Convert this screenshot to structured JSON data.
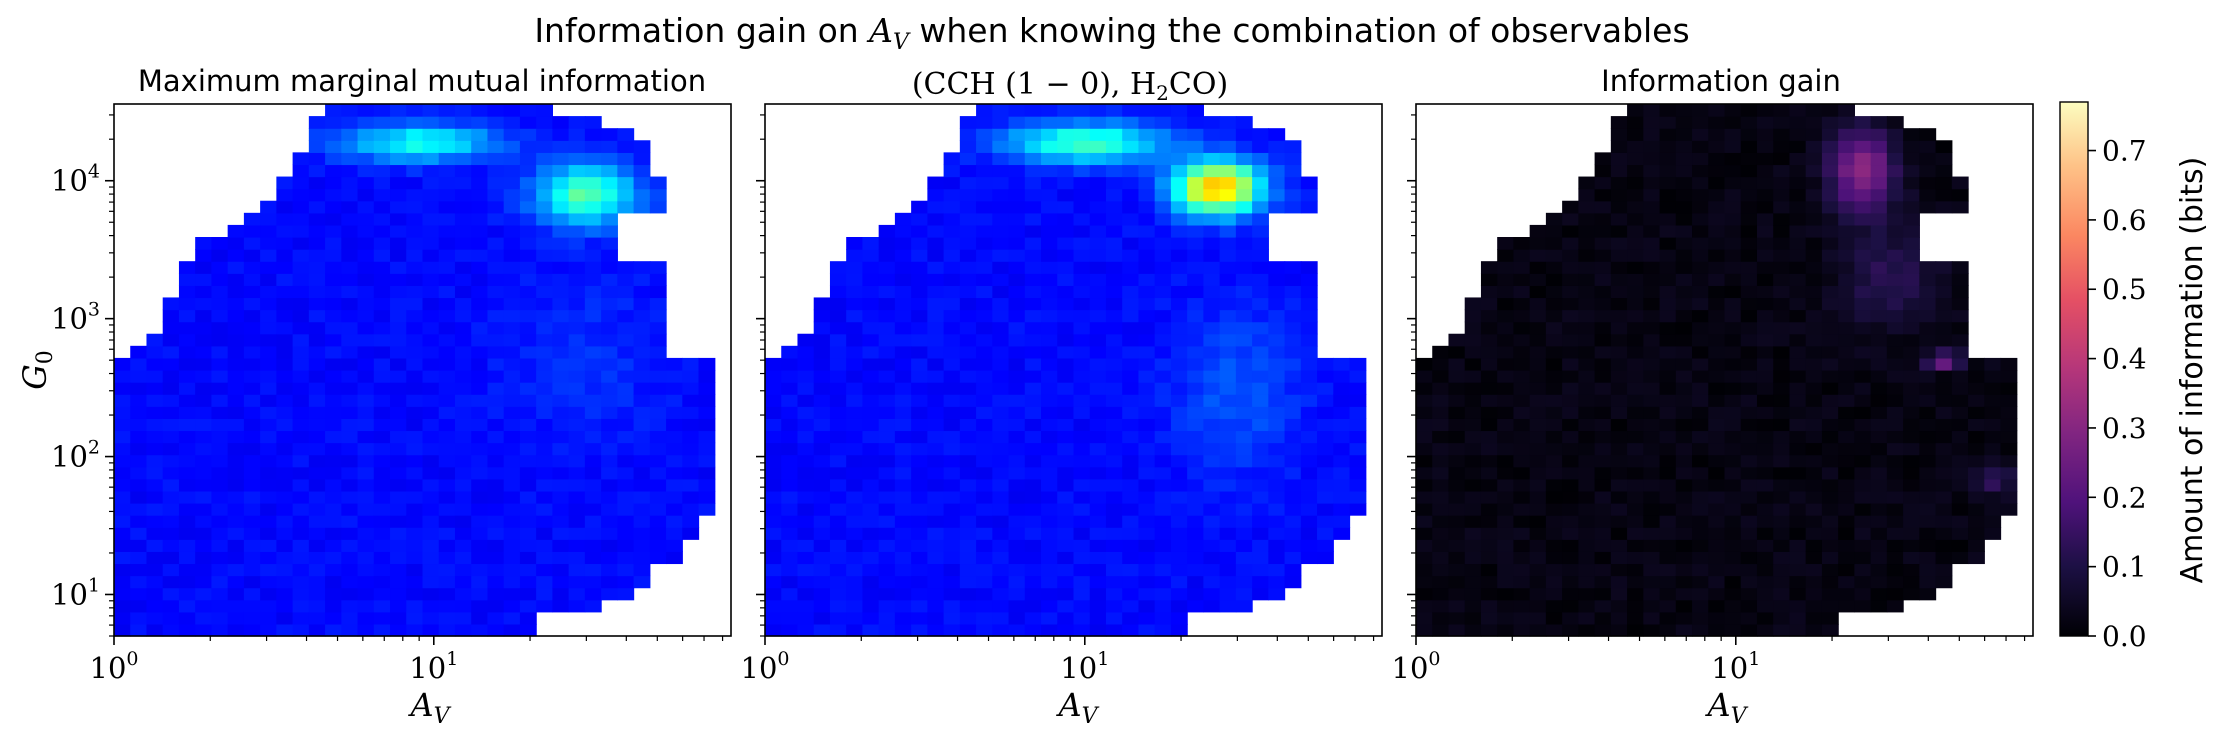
{
  "figure_title": "Information gain on A_V when knowing the combination of observables",
  "chart_data": [
    {
      "type": "heatmap",
      "title": "Maximum marginal mutual information",
      "xlabel": "A_V",
      "ylabel": "G_0",
      "xscale": "log",
      "yscale": "log",
      "xlim": [
        1,
        85
      ],
      "ylim": [
        5,
        36000
      ],
      "x_ticks": [
        "10^0",
        "10^1"
      ],
      "y_ticks": [
        "10^1",
        "10^2",
        "10^3",
        "10^4"
      ],
      "colormap": "jet",
      "vmin": 0.0,
      "vmax": 0.77,
      "cells": [
        {
          "x": 30,
          "y": 8000,
          "value": 0.36
        },
        {
          "x": 8,
          "y": 19000,
          "value": 0.32
        },
        {
          "x": 5,
          "y": 100,
          "value": 0.1
        }
      ]
    },
    {
      "type": "heatmap",
      "title": "(CCH (1 − 0), H2CO)",
      "xlabel": "A_V",
      "xscale": "log",
      "yscale": "log",
      "xlim": [
        1,
        85
      ],
      "ylim": [
        5,
        36000
      ],
      "x_ticks": [
        "10^0",
        "10^1"
      ],
      "colormap": "jet",
      "vmin": 0.0,
      "vmax": 0.77,
      "cells": [
        {
          "x": 26,
          "y": 9000,
          "value": 0.55
        },
        {
          "x": 10,
          "y": 19000,
          "value": 0.36
        },
        {
          "x": 5,
          "y": 100,
          "value": 0.11
        }
      ]
    },
    {
      "type": "heatmap",
      "title": "Information gain",
      "xlabel": "A_V",
      "xscale": "log",
      "yscale": "log",
      "xlim": [
        1,
        85
      ],
      "ylim": [
        5,
        36000
      ],
      "x_ticks": [
        "10^0",
        "10^1"
      ],
      "colormap": "magma",
      "vmin": 0.0,
      "vmax": 0.77,
      "cells": [
        {
          "x": 25,
          "y": 12000,
          "value": 0.3
        },
        {
          "x": 45,
          "y": 500,
          "value": 0.28
        },
        {
          "x": 5,
          "y": 100,
          "value": 0.02
        }
      ]
    }
  ],
  "colorbar": {
    "label": "Amount of information (bits)",
    "vmin": 0.0,
    "vmax": 0.77,
    "ticks": [
      "0.0",
      "0.1",
      "0.2",
      "0.3",
      "0.4",
      "0.5",
      "0.6",
      "0.7"
    ],
    "colormap": "magma"
  }
}
